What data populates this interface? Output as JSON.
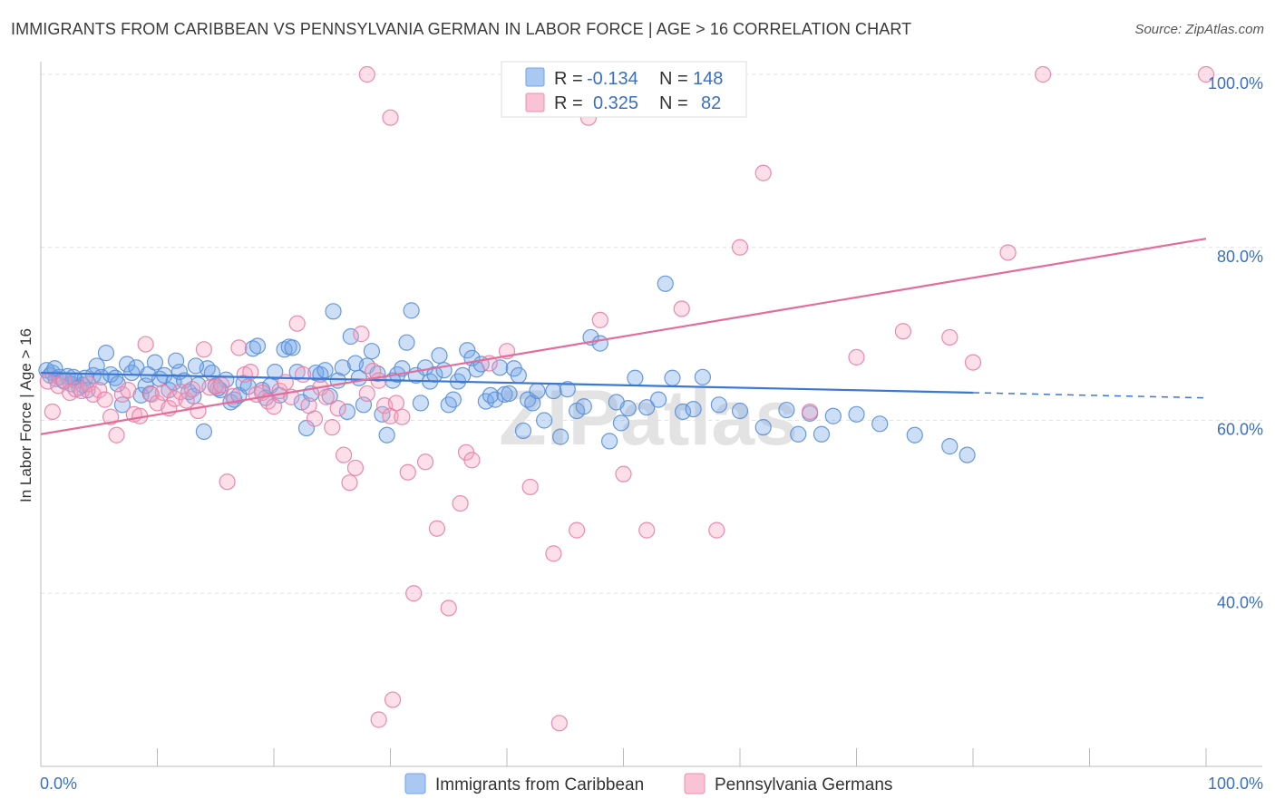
{
  "header": {
    "title": "IMMIGRANTS FROM CARIBBEAN VS PENNSYLVANIA GERMAN IN LABOR FORCE | AGE > 16 CORRELATION CHART",
    "source": "Source: ZipAtlas.com"
  },
  "watermark": "ZIPatlas",
  "legend_top": {
    "rows": [
      {
        "r_label": "R =",
        "r_value": "-0.134",
        "n_label": "N =",
        "n_value": "148",
        "color": "#6fa3e8"
      },
      {
        "r_label": "R =",
        "r_value": "0.325",
        "n_label": "N =",
        "n_value": "82",
        "color": "#f08cb0"
      }
    ]
  },
  "chart_data": {
    "type": "scatter",
    "title": "IMMIGRANTS FROM CARIBBEAN VS PENNSYLVANIA GERMAN IN LABOR FORCE | AGE > 16 CORRELATION CHART",
    "xlabel": "",
    "ylabel": "In Labor Force | Age > 16",
    "xlim": [
      0,
      100
    ],
    "ylim": [
      20,
      100
    ],
    "x_tick_labels": [
      "0.0%",
      "100.0%"
    ],
    "y_tick_labels": [
      "40.0%",
      "60.0%",
      "80.0%",
      "100.0%"
    ],
    "y_ticks": [
      40,
      60,
      80,
      100
    ],
    "grid": true,
    "legend_position": "bottom",
    "series": [
      {
        "name": "Immigrants from Caribbean",
        "color": "#6fa3e8",
        "stroke": "#5b8fd6",
        "r": -0.134,
        "n": 148,
        "trend": {
          "x0": 0,
          "y0": 65.5,
          "x1": 80,
          "y1": 63.2,
          "dash_to": 100,
          "dash_y": 62.6
        },
        "points": [
          [
            0.5,
            65.8
          ],
          [
            0.8,
            65.2
          ],
          [
            1.0,
            65.5
          ],
          [
            1.3,
            64.8
          ],
          [
            1.6,
            65.0
          ],
          [
            2.0,
            64.5
          ],
          [
            2.3,
            65.1
          ],
          [
            2.6,
            64.2
          ],
          [
            3.0,
            64.6
          ],
          [
            3.3,
            63.8
          ],
          [
            3.6,
            64.1
          ],
          [
            4.0,
            63.5
          ],
          [
            4.5,
            65.2
          ],
          [
            4.8,
            66.3
          ],
          [
            5.2,
            65.0
          ],
          [
            5.6,
            67.8
          ],
          [
            6.0,
            65.3
          ],
          [
            6.4,
            64.9
          ],
          [
            7.0,
            61.8
          ],
          [
            7.4,
            66.5
          ],
          [
            7.8,
            65.5
          ],
          [
            8.2,
            66.1
          ],
          [
            8.6,
            62.9
          ],
          [
            9.0,
            64.0
          ],
          [
            9.4,
            63.1
          ],
          [
            9.8,
            66.7
          ],
          [
            10.2,
            64.8
          ],
          [
            10.6,
            65.2
          ],
          [
            11.0,
            63.5
          ],
          [
            11.4,
            64.4
          ],
          [
            11.9,
            65.6
          ],
          [
            12.3,
            64.6
          ],
          [
            12.7,
            63.3
          ],
          [
            13.1,
            62.8
          ],
          [
            13.5,
            64.1
          ],
          [
            14.0,
            58.7
          ],
          [
            14.3,
            66.0
          ],
          [
            14.7,
            65.5
          ],
          [
            15.0,
            64.0
          ],
          [
            15.4,
            63.5
          ],
          [
            15.9,
            64.7
          ],
          [
            16.3,
            62.1
          ],
          [
            16.6,
            62.4
          ],
          [
            17.0,
            62.9
          ],
          [
            17.4,
            64.3
          ],
          [
            17.8,
            63.9
          ],
          [
            18.2,
            68.3
          ],
          [
            18.6,
            68.6
          ],
          [
            19.0,
            63.5
          ],
          [
            19.3,
            62.6
          ],
          [
            19.7,
            64.0
          ],
          [
            20.1,
            65.6
          ],
          [
            20.5,
            62.9
          ],
          [
            20.9,
            68.2
          ],
          [
            21.3,
            68.5
          ],
          [
            21.6,
            68.4
          ],
          [
            22.0,
            65.6
          ],
          [
            22.4,
            62.1
          ],
          [
            22.8,
            59.1
          ],
          [
            23.2,
            63.1
          ],
          [
            23.6,
            65.5
          ],
          [
            24.0,
            65.3
          ],
          [
            24.4,
            65.8
          ],
          [
            24.8,
            62.8
          ],
          [
            25.1,
            72.6
          ],
          [
            25.5,
            64.6
          ],
          [
            25.9,
            66.1
          ],
          [
            26.3,
            61.0
          ],
          [
            26.6,
            69.7
          ],
          [
            27.0,
            66.6
          ],
          [
            27.3,
            64.9
          ],
          [
            27.7,
            61.8
          ],
          [
            28.0,
            66.3
          ],
          [
            28.4,
            68.0
          ],
          [
            28.9,
            65.4
          ],
          [
            29.3,
            60.7
          ],
          [
            29.7,
            58.3
          ],
          [
            30.2,
            64.6
          ],
          [
            30.6,
            65.3
          ],
          [
            31.0,
            66.0
          ],
          [
            31.4,
            69.0
          ],
          [
            31.8,
            72.7
          ],
          [
            32.2,
            65.2
          ],
          [
            32.6,
            62.0
          ],
          [
            33.0,
            66.1
          ],
          [
            33.4,
            64.5
          ],
          [
            33.8,
            65.3
          ],
          [
            34.2,
            67.5
          ],
          [
            34.6,
            65.8
          ],
          [
            35.0,
            61.8
          ],
          [
            35.4,
            62.4
          ],
          [
            35.8,
            64.5
          ],
          [
            36.2,
            65.2
          ],
          [
            36.6,
            68.1
          ],
          [
            37.0,
            67.2
          ],
          [
            37.4,
            65.9
          ],
          [
            37.8,
            66.5
          ],
          [
            38.2,
            62.2
          ],
          [
            38.6,
            62.9
          ],
          [
            39.0,
            62.4
          ],
          [
            39.4,
            66.1
          ],
          [
            39.8,
            63.0
          ],
          [
            40.2,
            63.1
          ],
          [
            40.6,
            66.0
          ],
          [
            41.0,
            65.2
          ],
          [
            41.4,
            58.8
          ],
          [
            41.8,
            62.4
          ],
          [
            42.2,
            62.0
          ],
          [
            42.6,
            63.4
          ],
          [
            43.2,
            60.0
          ],
          [
            44.0,
            63.4
          ],
          [
            44.6,
            58.1
          ],
          [
            45.2,
            63.6
          ],
          [
            46.0,
            61.1
          ],
          [
            46.6,
            61.6
          ],
          [
            47.2,
            69.6
          ],
          [
            48.0,
            68.9
          ],
          [
            48.8,
            57.6
          ],
          [
            49.4,
            62.1
          ],
          [
            49.8,
            59.7
          ],
          [
            50.4,
            61.4
          ],
          [
            51.0,
            64.9
          ],
          [
            52.0,
            61.5
          ],
          [
            53.0,
            62.4
          ],
          [
            53.6,
            75.8
          ],
          [
            54.2,
            64.9
          ],
          [
            55.1,
            61.0
          ],
          [
            56.0,
            61.3
          ],
          [
            56.8,
            65.0
          ],
          [
            58.2,
            61.8
          ],
          [
            60.0,
            61.1
          ],
          [
            62.0,
            59.2
          ],
          [
            64.0,
            61.2
          ],
          [
            65.0,
            58.4
          ],
          [
            66.0,
            60.8
          ],
          [
            67.0,
            58.4
          ],
          [
            68.0,
            60.5
          ],
          [
            70.0,
            60.7
          ],
          [
            72.0,
            59.6
          ],
          [
            75.0,
            58.3
          ],
          [
            78.0,
            57.0
          ],
          [
            79.5,
            56.0
          ],
          [
            1.2,
            66.0
          ],
          [
            2.8,
            65.0
          ],
          [
            3.8,
            64.9
          ],
          [
            6.6,
            64.2
          ],
          [
            9.2,
            65.3
          ],
          [
            11.6,
            66.9
          ],
          [
            13.3,
            66.3
          ],
          [
            15.2,
            63.7
          ]
        ]
      },
      {
        "name": "Pennsylvania Germans",
        "color": "#f5a3c0",
        "stroke": "#e87ea6",
        "r": 0.325,
        "n": 82,
        "trend": {
          "x0": 0,
          "y0": 58.4,
          "x1": 100,
          "y1": 81.0
        },
        "points": [
          [
            0.6,
            64.5
          ],
          [
            1.0,
            61.0
          ],
          [
            1.5,
            64.0
          ],
          [
            2.0,
            64.6
          ],
          [
            2.5,
            63.2
          ],
          [
            3.0,
            63.6
          ],
          [
            3.5,
            63.4
          ],
          [
            4.1,
            64.2
          ],
          [
            4.5,
            63.0
          ],
          [
            5.0,
            63.5
          ],
          [
            5.5,
            62.4
          ],
          [
            6.0,
            60.4
          ],
          [
            6.5,
            58.3
          ],
          [
            7.0,
            63.0
          ],
          [
            7.5,
            63.5
          ],
          [
            8.0,
            60.7
          ],
          [
            8.5,
            60.5
          ],
          [
            9.0,
            68.8
          ],
          [
            9.5,
            63.0
          ],
          [
            10.0,
            62.0
          ],
          [
            10.5,
            63.2
          ],
          [
            11.0,
            61.4
          ],
          [
            11.5,
            62.5
          ],
          [
            12.0,
            63.3
          ],
          [
            12.5,
            62.3
          ],
          [
            13.0,
            63.6
          ],
          [
            13.5,
            61.1
          ],
          [
            14.0,
            68.2
          ],
          [
            14.5,
            63.8
          ],
          [
            15.0,
            63.9
          ],
          [
            15.5,
            64.1
          ],
          [
            16.0,
            52.9
          ],
          [
            16.5,
            62.8
          ],
          [
            17.0,
            68.4
          ],
          [
            17.5,
            65.3
          ],
          [
            18.0,
            65.6
          ],
          [
            18.5,
            63.0
          ],
          [
            19.0,
            63.2
          ],
          [
            19.5,
            62.2
          ],
          [
            20.0,
            61.6
          ],
          [
            20.5,
            63.4
          ],
          [
            21.0,
            64.4
          ],
          [
            21.5,
            62.7
          ],
          [
            22.0,
            71.2
          ],
          [
            22.5,
            65.3
          ],
          [
            23.0,
            61.7
          ],
          [
            23.5,
            60.2
          ],
          [
            24.0,
            63.8
          ],
          [
            24.5,
            62.7
          ],
          [
            25.0,
            59.2
          ],
          [
            25.5,
            61.4
          ],
          [
            26.0,
            56.0
          ],
          [
            26.5,
            52.8
          ],
          [
            27.0,
            54.5
          ],
          [
            27.5,
            70.0
          ],
          [
            28.0,
            63.1
          ],
          [
            28.5,
            65.7
          ],
          [
            29.0,
            64.6
          ],
          [
            29.5,
            61.7
          ],
          [
            30.0,
            60.5
          ],
          [
            30.5,
            62.0
          ],
          [
            31.0,
            60.4
          ],
          [
            31.5,
            54.0
          ],
          [
            32.0,
            40.0
          ],
          [
            33.0,
            55.2
          ],
          [
            34.0,
            47.5
          ],
          [
            35.0,
            38.3
          ],
          [
            36.0,
            50.4
          ],
          [
            36.5,
            56.3
          ],
          [
            37.0,
            55.4
          ],
          [
            38.5,
            66.6
          ],
          [
            40.0,
            68.0
          ],
          [
            42.0,
            52.3
          ],
          [
            44.0,
            44.6
          ],
          [
            46.0,
            47.3
          ],
          [
            48.0,
            71.6
          ],
          [
            50.0,
            53.8
          ],
          [
            52.0,
            47.3
          ],
          [
            55.0,
            72.9
          ],
          [
            58.0,
            47.3
          ],
          [
            60.0,
            80.0
          ],
          [
            62.0,
            88.6
          ],
          [
            66.0,
            61.0
          ],
          [
            70.0,
            67.3
          ],
          [
            74.0,
            70.3
          ],
          [
            78.0,
            69.6
          ],
          [
            80.0,
            66.7
          ],
          [
            83.0,
            79.4
          ],
          [
            86.0,
            100.0
          ],
          [
            100.0,
            100.0
          ],
          [
            28.0,
            100.0
          ],
          [
            30.0,
            95.0
          ],
          [
            47.0,
            95.0
          ],
          [
            29.0,
            25.4
          ],
          [
            44.5,
            25.0
          ],
          [
            30.2,
            27.7
          ]
        ]
      }
    ]
  },
  "bottom_legend": [
    {
      "label": "Immigrants from Caribbean",
      "color": "#a9c8f2",
      "stroke": "#6fa3e8"
    },
    {
      "label": "Pennsylvania Germans",
      "color": "#f9c3d5",
      "stroke": "#ec8db0"
    }
  ]
}
